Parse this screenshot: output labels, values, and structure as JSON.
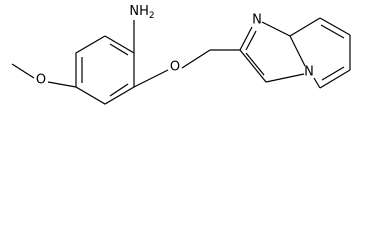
{
  "atoms": {
    "amine": "NH2",
    "ether_oxygen": "O",
    "methoxy_oxygen": "O",
    "imidazole_n": "N",
    "bridge_n": "N"
  }
}
